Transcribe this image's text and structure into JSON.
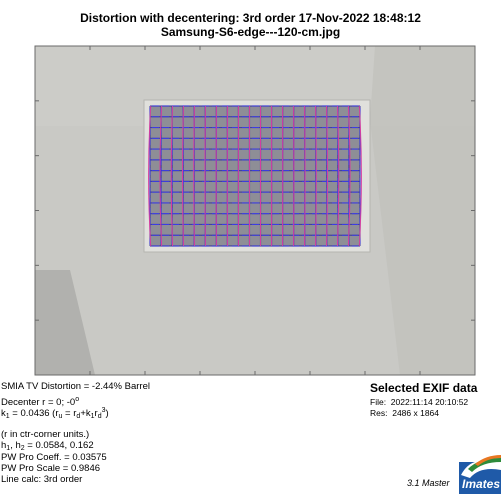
{
  "title_line1": "Distortion with decentering:  3rd order     17-Nov-2022 18:48:12",
  "title_line2": "Samsung-S6-edge---120-cm.jpg",
  "info": {
    "smia": "SMIA TV Distortion = -2.44% Barrel",
    "decenter": "Decenter r = 0;  -0",
    "decenter_deg": "o",
    "k1_pre": "k",
    "k1_sub": "1",
    "k1_val": " = 0.0436  (r",
    "ru_sub": "u",
    "k1_mid": " = r",
    "rd_sub": "d",
    "k1_plus": "+k",
    "k1b_sub": "1",
    "k1_r": "r",
    "rd3_sub": "d",
    "rd3_sup": "3",
    "k1_end": ")",
    "units": "(r in ctr-corner units.)",
    "h_pre": "h",
    "h1_sub": "1",
    "h_comma": ", h",
    "h2_sub": "2",
    "h_val": " = 0.0584, 0.162",
    "pwpro_coeff": "PW Pro Coeff. = 0.03575",
    "pwpro_scale": "PW Pro Scale = 0.9846",
    "line_calc": "Line calc: 3rd order"
  },
  "exif": {
    "header": "Selected EXIF data",
    "file_label": "File:",
    "file_value": "2022:11:14 20:10:52",
    "res_label": "Res:",
    "res_value": "2486 x 1864"
  },
  "version": "3.1  Master",
  "logo_text": "Imates",
  "colors": {
    "photo_bg": "#c9c9c5",
    "chart_bg": "#8e8e96",
    "grid_line": "#2a2a9a",
    "blue_line": "#3b3bf2",
    "magenta_line": "#d63ea0",
    "frame": "#6a6a6a"
  }
}
